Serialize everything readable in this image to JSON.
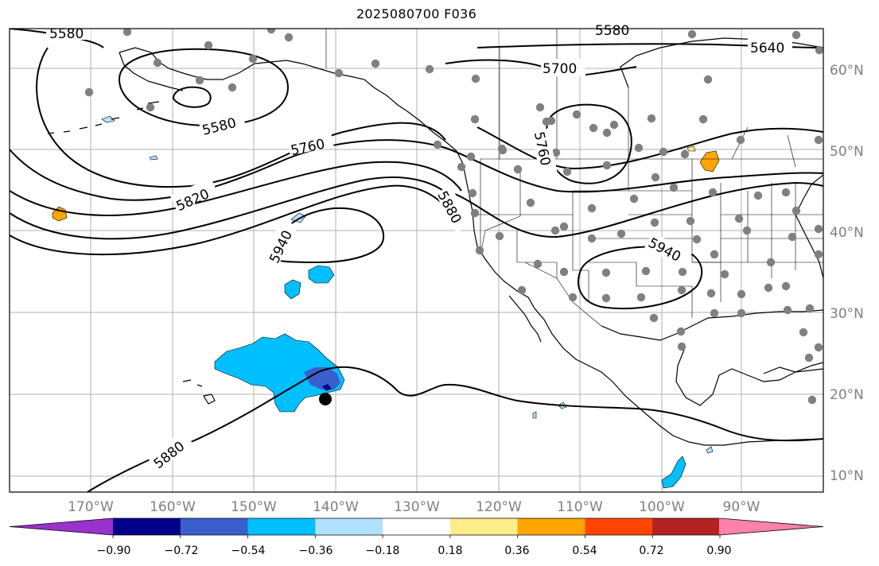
{
  "title": "2025080700 F036",
  "map": {
    "lat_labels": [
      "60°N",
      "50°N",
      "40°N",
      "30°N",
      "20°N",
      "10°N"
    ],
    "lon_labels": [
      "170°W",
      "160°W",
      "150°W",
      "140°W",
      "130°W",
      "120°W",
      "110°W",
      "100°W",
      "90°W"
    ],
    "contour_labels": [
      "5580",
      "5580",
      "5640",
      "5700",
      "5760",
      "5820",
      "5880",
      "5940",
      "5940",
      "5760",
      "5880",
      "5580"
    ]
  },
  "colorbar": {
    "ticks": [
      "−0.90",
      "−0.72",
      "−0.54",
      "−0.36",
      "−0.18",
      "0.18",
      "0.36",
      "0.54",
      "0.72",
      "0.90"
    ],
    "colors": [
      "#9932cc",
      "#00008b",
      "#3a5fcd",
      "#00bfff",
      "#b0e2ff",
      "#ffffff",
      "#ffec8b",
      "#ffa500",
      "#ff4500",
      "#b22222",
      "#ff82ab"
    ]
  }
}
